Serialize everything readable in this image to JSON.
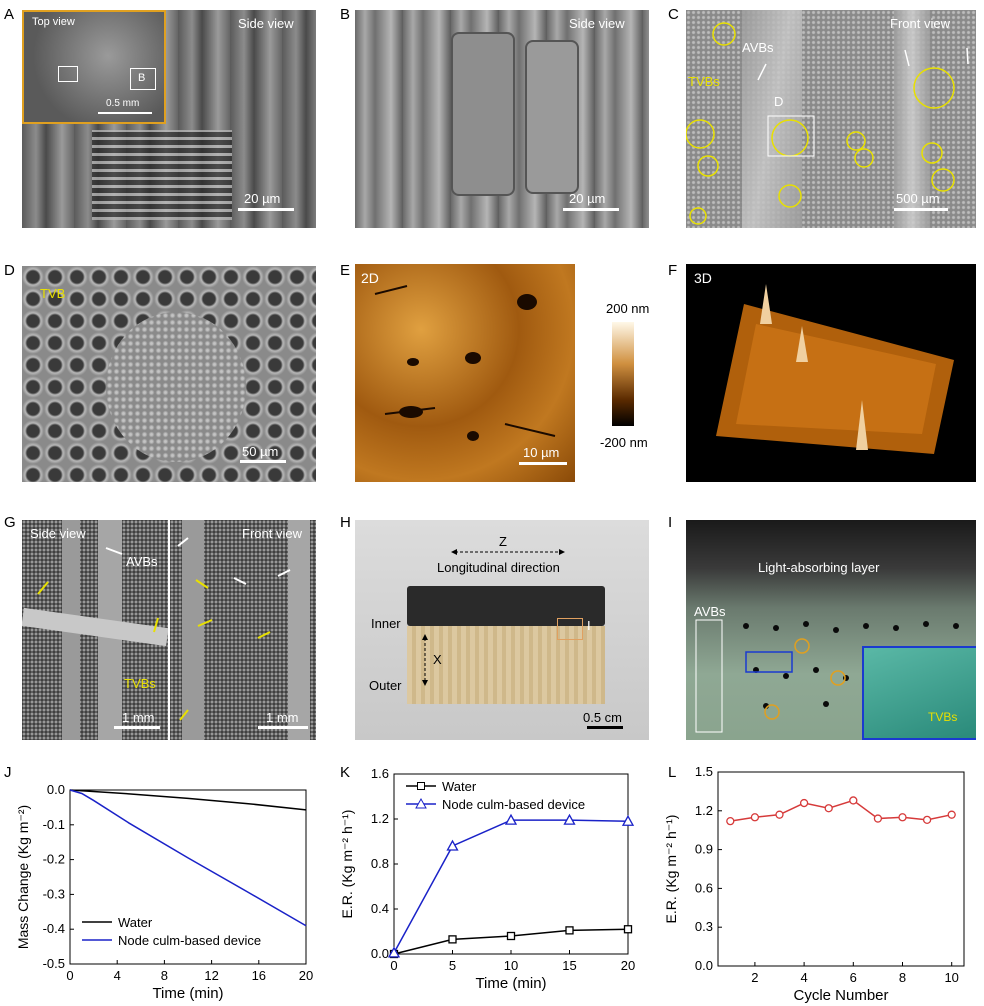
{
  "panel_letters": [
    "A",
    "B",
    "C",
    "D",
    "E",
    "F",
    "G",
    "H",
    "I",
    "J",
    "K",
    "L"
  ],
  "A": {
    "inset_label": "Top view",
    "view_label": "Side view",
    "inset_box_label": "B",
    "inset_scale": "0.5 mm",
    "scale": "20 µm"
  },
  "B": {
    "view_label": "Side view",
    "scale": "20 µm"
  },
  "C": {
    "view_label": "Front view",
    "avbs": "AVBs",
    "tvbs": "TVBs",
    "box_label": "D",
    "scale": "500 µm"
  },
  "D": {
    "tvb": "TVB",
    "scale": "50 µm"
  },
  "E": {
    "mode": "2D",
    "scale": "10 µm",
    "colorbar_top": "200 nm",
    "colorbar_bottom": "-200 nm"
  },
  "F": {
    "mode": "3D"
  },
  "G": {
    "left_view": "Side view",
    "right_view": "Front view",
    "avbs": "AVBs",
    "tvbs": "TVBs",
    "scale_left": "1 mm",
    "scale_right": "1 mm"
  },
  "H": {
    "z": "Z",
    "direction": "Longitudinal direction",
    "inner": "Inner",
    "outer": "Outer",
    "x": "X",
    "box_label": "I",
    "scale": "0.5 cm"
  },
  "I": {
    "layer": "Light-absorbing layer",
    "avbs": "AVBs",
    "tvbs": "TVBs"
  },
  "colors": {
    "black_series": "#000000",
    "blue_series": "#1a22c8",
    "red_series": "#d63a3a"
  },
  "chart_data": [
    {
      "id": "J",
      "type": "line",
      "xlabel": "Time (min)",
      "ylabel": "Mass Change (Kg m⁻²)",
      "xlim": [
        0,
        20
      ],
      "ylim": [
        -0.5,
        0.0
      ],
      "xticks": [
        "0",
        "4",
        "8",
        "12",
        "16",
        "20"
      ],
      "yticks": [
        "0.0",
        "-0.1",
        "-0.2",
        "-0.3",
        "-0.4",
        "-0.5"
      ],
      "legend_position": "bottom-left",
      "series": [
        {
          "name": "Water",
          "color": "#000000",
          "x": [
            0,
            5,
            10,
            15,
            20
          ],
          "y": [
            0.0,
            -0.011,
            -0.024,
            -0.039,
            -0.057
          ]
        },
        {
          "name": "Node culm-based device",
          "color": "#1a22c8",
          "x": [
            0,
            1,
            2,
            5,
            10,
            15,
            20
          ],
          "y": [
            0.0,
            -0.01,
            -0.03,
            -0.095,
            -0.195,
            -0.292,
            -0.39
          ]
        }
      ]
    },
    {
      "id": "K",
      "type": "line",
      "xlabel": "Time (min)",
      "ylabel": "E.R. (Kg m⁻² h⁻¹)",
      "xlim": [
        0,
        20
      ],
      "ylim": [
        0.0,
        1.6
      ],
      "xticks": [
        "0",
        "5",
        "10",
        "15",
        "20"
      ],
      "yticks": [
        "0.0",
        "0.4",
        "0.8",
        "1.2",
        "1.6"
      ],
      "legend_position": "top-left",
      "series": [
        {
          "name": "Water",
          "color": "#000000",
          "marker": "square",
          "x": [
            0,
            5,
            10,
            15,
            20
          ],
          "y": [
            0.0,
            0.13,
            0.16,
            0.21,
            0.22
          ]
        },
        {
          "name": "Node culm-based device",
          "color": "#1a22c8",
          "marker": "triangle",
          "x": [
            0,
            5,
            10,
            15,
            20
          ],
          "y": [
            0.01,
            0.96,
            1.19,
            1.19,
            1.18
          ]
        }
      ]
    },
    {
      "id": "L",
      "type": "line",
      "xlabel": "Cycle Number",
      "ylabel": "E.R. (Kg m⁻² h⁻¹)",
      "xlim": [
        0.5,
        10.5
      ],
      "ylim": [
        0.0,
        1.5
      ],
      "xticks": [
        "2",
        "4",
        "6",
        "8",
        "10"
      ],
      "yticks": [
        "0.0",
        "0.3",
        "0.6",
        "0.9",
        "1.2",
        "1.5"
      ],
      "series": [
        {
          "color": "#d63a3a",
          "marker": "circle",
          "x": [
            1,
            2,
            3,
            4,
            5,
            6,
            7,
            8,
            9,
            10
          ],
          "y": [
            1.12,
            1.15,
            1.17,
            1.26,
            1.22,
            1.28,
            1.14,
            1.15,
            1.13,
            1.17
          ]
        }
      ]
    }
  ]
}
